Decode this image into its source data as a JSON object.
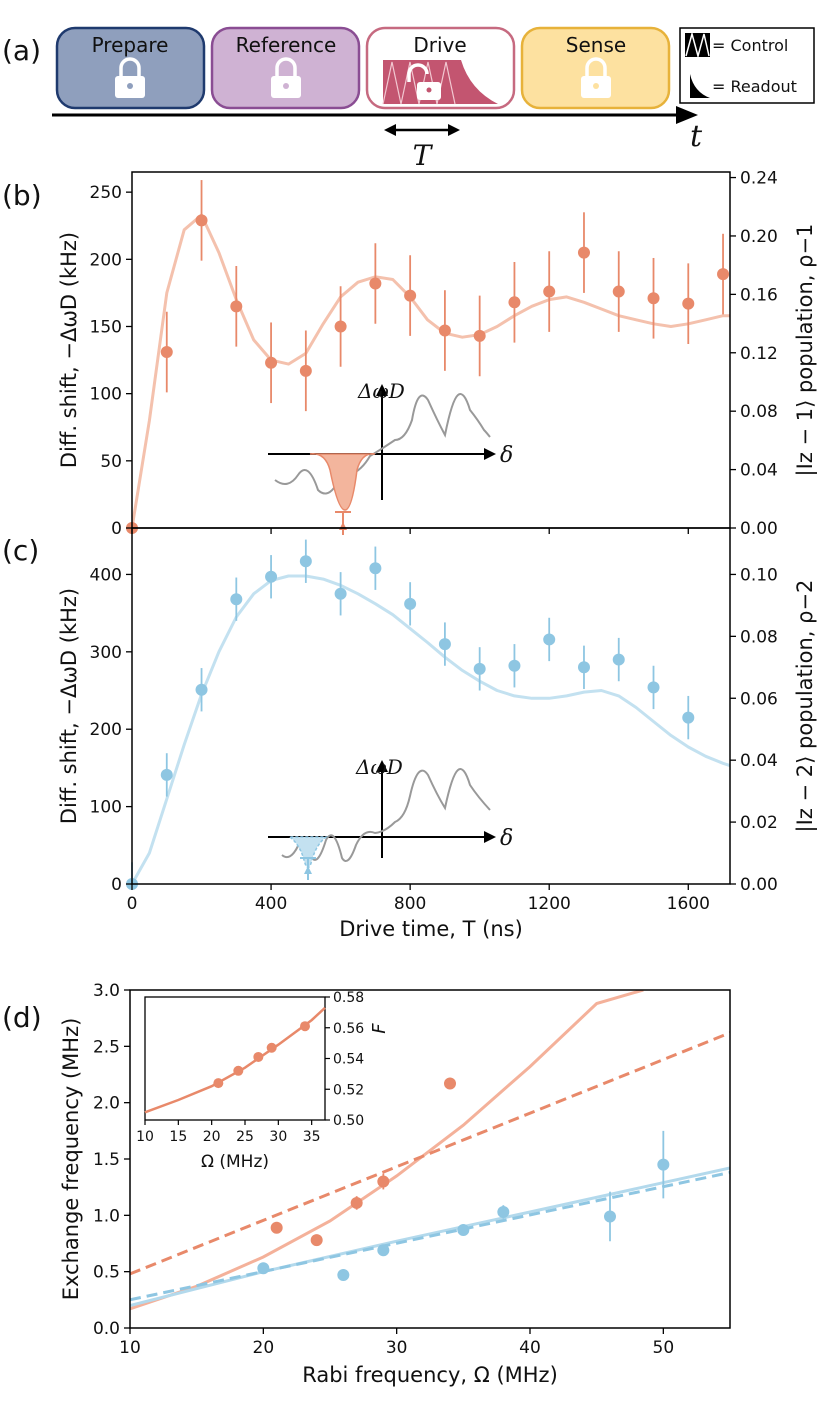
{
  "panel_a": {
    "label": "(a)",
    "stages": [
      {
        "name": "Prepare",
        "fill": "#8f9fbd",
        "stroke": "#1f3a6e",
        "lock": "locked"
      },
      {
        "name": "Reference",
        "fill": "#cfb2d3",
        "stroke": "#8a4d93",
        "lock": "locked"
      },
      {
        "name": "Drive",
        "fill": "#ffffff",
        "stroke": "#c66a80",
        "lock": "unlocked"
      },
      {
        "name": "Sense",
        "fill": "#fde1a0",
        "stroke": "#e7b23a",
        "lock": "locked"
      }
    ],
    "legend_control": "= Control",
    "legend_readout": "= Readout",
    "time_symbol": "t",
    "duration_symbol": "T"
  },
  "chart_data": [
    {
      "id": "b",
      "type": "scatter",
      "panel_label": "(b)",
      "xlabel": "",
      "ylabel": "Diff. shift, −ΔωD (kHz)",
      "ylabel_right": "|Iz − 1⟩ population, ρ−1",
      "xlim": [
        0,
        1720
      ],
      "ylim": [
        0,
        265
      ],
      "ylim_right": [
        0,
        0.2438
      ],
      "yticks": [
        0,
        50,
        100,
        150,
        200,
        250
      ],
      "yticks_right": [
        "0.00",
        "0.04",
        "0.08",
        "0.12",
        "0.16",
        "0.20",
        "0.24"
      ],
      "color": "#e8896a",
      "line_color": "#f4c1ad",
      "points": {
        "x": [
          0,
          100,
          200,
          300,
          400,
          500,
          600,
          700,
          800,
          900,
          1000,
          1100,
          1200,
          1300,
          1400,
          1500,
          1600,
          1700
        ],
        "y": [
          0,
          131,
          229,
          165,
          123,
          117,
          150,
          182,
          173,
          147,
          143,
          168,
          176,
          205,
          176,
          171,
          167,
          189
        ],
        "err": [
          0,
          30,
          30,
          30,
          30,
          30,
          30,
          30,
          30,
          30,
          30,
          30,
          30,
          30,
          30,
          30,
          30,
          30
        ]
      },
      "fit": {
        "x": [
          0,
          50,
          100,
          150,
          200,
          250,
          300,
          350,
          400,
          450,
          500,
          550,
          600,
          650,
          700,
          750,
          800,
          850,
          900,
          950,
          1000,
          1050,
          1100,
          1150,
          1200,
          1250,
          1300,
          1350,
          1400,
          1450,
          1500,
          1550,
          1600,
          1650,
          1700,
          1720
        ],
        "y": [
          0,
          80,
          175,
          222,
          233,
          205,
          170,
          140,
          125,
          122,
          130,
          152,
          172,
          183,
          187,
          185,
          172,
          155,
          145,
          142,
          144,
          150,
          158,
          165,
          170,
          172,
          168,
          163,
          158,
          155,
          152,
          150,
          152,
          155,
          158,
          158
        ]
      },
      "inset": {
        "axis_label": "ΔωD",
        "axis_x": "δ"
      }
    },
    {
      "id": "c",
      "type": "scatter",
      "panel_label": "(c)",
      "xlabel": "Drive time, T (ns)",
      "ylabel": "Diff. shift, −ΔωD (kHz)",
      "ylabel_right": "|Iz − 2⟩ population, ρ−2",
      "xlim": [
        0,
        1720
      ],
      "ylim": [
        0,
        460
      ],
      "ylim_right": [
        0,
        0.115
      ],
      "xticks": [
        0,
        400,
        800,
        1200,
        1600
      ],
      "yticks": [
        0,
        100,
        200,
        300,
        400
      ],
      "yticks_right": [
        "0.00",
        "0.02",
        "0.04",
        "0.06",
        "0.08",
        "0.10"
      ],
      "color": "#8ec6e2",
      "line_color": "#c3e1f0",
      "points": {
        "x": [
          0,
          100,
          200,
          300,
          400,
          500,
          600,
          700,
          800,
          900,
          1000,
          1100,
          1200,
          1300,
          1400,
          1500,
          1600
        ],
        "y": [
          0,
          141,
          251,
          368,
          397,
          417,
          375,
          408,
          362,
          310,
          278,
          282,
          316,
          280,
          290,
          254,
          215
        ],
        "err": [
          28,
          28,
          28,
          28,
          28,
          28,
          28,
          28,
          28,
          28,
          28,
          28,
          28,
          28,
          28,
          28,
          28
        ]
      },
      "fit": {
        "x": [
          0,
          50,
          100,
          150,
          200,
          250,
          300,
          350,
          400,
          450,
          500,
          550,
          600,
          650,
          700,
          750,
          800,
          850,
          900,
          950,
          1000,
          1050,
          1100,
          1150,
          1200,
          1250,
          1300,
          1350,
          1400,
          1450,
          1500,
          1550,
          1600,
          1650,
          1700,
          1720
        ],
        "y": [
          0,
          40,
          110,
          180,
          245,
          300,
          345,
          375,
          392,
          398,
          398,
          394,
          386,
          375,
          362,
          348,
          330,
          312,
          293,
          276,
          262,
          250,
          243,
          240,
          240,
          243,
          248,
          250,
          243,
          228,
          210,
          192,
          177,
          165,
          156,
          153
        ]
      },
      "inset": {
        "axis_label": "ΔωD",
        "axis_x": "δ"
      }
    },
    {
      "id": "d",
      "type": "scatter",
      "panel_label": "(d)",
      "xlabel": "Rabi frequency, Ω (MHz)",
      "ylabel": "Exchange frequency (MHz)",
      "xlim": [
        10,
        55
      ],
      "ylim": [
        0,
        3.0
      ],
      "xticks": [
        10,
        20,
        30,
        40,
        50
      ],
      "yticks": [
        "0.0",
        "0.5",
        "1.0",
        "1.5",
        "2.0",
        "2.5",
        "3.0"
      ],
      "series": [
        {
          "name": "orange",
          "color": "#e8896a",
          "x": [
            21,
            24,
            27,
            29,
            34
          ],
          "y": [
            0.89,
            0.78,
            1.11,
            1.3,
            2.17
          ],
          "err": [
            0.05,
            0.05,
            0.06,
            0.07,
            0.05
          ],
          "fit_solid": {
            "x": [
              10,
              15,
              20,
              25,
              30,
              35,
              40,
              45,
              48.5
            ],
            "y": [
              0.17,
              0.37,
              0.63,
              0.95,
              1.35,
              1.8,
              2.32,
              2.88,
              3.0
            ]
          },
          "fit_dashed": {
            "x": [
              10,
              55
            ],
            "y": [
              0.48,
              2.62
            ]
          }
        },
        {
          "name": "blue",
          "color": "#8ec6e2",
          "x": [
            20,
            26,
            29,
            35,
            38,
            46,
            50
          ],
          "y": [
            0.53,
            0.47,
            0.69,
            0.87,
            1.03,
            0.99,
            1.45
          ],
          "err": [
            0.02,
            0.02,
            0.05,
            0.03,
            0.06,
            0.22,
            0.3
          ],
          "fit_solid": {
            "x": [
              10,
              20,
              30,
              40,
              55
            ],
            "y": [
              0.2,
              0.5,
              0.77,
              1.03,
              1.42
            ]
          },
          "fit_dashed": {
            "x": [
              10,
              55
            ],
            "y": [
              0.25,
              1.38
            ]
          }
        }
      ],
      "inset": {
        "xlabel": "Ω (MHz)",
        "ylabel": "F",
        "xlim": [
          10,
          37
        ],
        "ylim": [
          0.5,
          0.58
        ],
        "xticks": [
          10,
          15,
          20,
          25,
          30,
          35
        ],
        "yticks": [
          "0.50",
          "0.52",
          "0.54",
          "0.56",
          "0.58"
        ],
        "points": {
          "x": [
            21,
            24,
            27,
            29,
            34
          ],
          "y": [
            0.524,
            0.532,
            0.541,
            0.547,
            0.561
          ]
        },
        "curve": {
          "x": [
            10,
            15,
            20,
            25,
            30,
            35,
            37
          ],
          "y": [
            0.505,
            0.513,
            0.522,
            0.534,
            0.549,
            0.565,
            0.573
          ]
        }
      }
    }
  ]
}
